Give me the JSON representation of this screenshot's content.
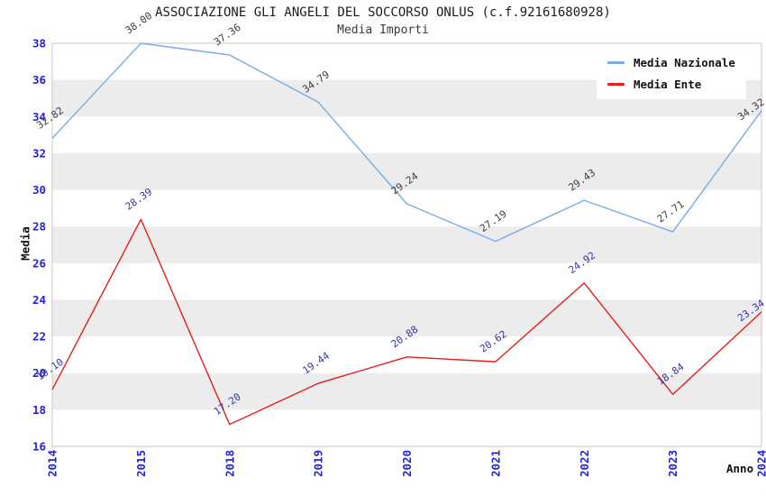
{
  "header": {
    "title": "ASSOCIAZIONE GLI ANGELI DEL SOCCORSO ONLUS (c.f.92161680928)",
    "subtitle": "Media Importi"
  },
  "colors": {
    "band_gray": "#ececec",
    "plot_border": "#c8c8c8",
    "axis_tick_blue": "#2222dd",
    "nazionale_blue": "#79ade3",
    "ente_red": "#e61e1e",
    "nazionale_label": "#3c3c3c",
    "ente_label": "#3434a8"
  },
  "chart_data": {
    "type": "line",
    "title": "ASSOCIAZIONE GLI ANGELI DEL SOCCORSO ONLUS (c.f.92161680928)",
    "subtitle": "Media Importi",
    "xlabel": "Anno",
    "ylabel": "Media",
    "categories": [
      "2014",
      "2015",
      "2018",
      "2019",
      "2020",
      "2021",
      "2022",
      "2023",
      "2024"
    ],
    "yticks": [
      16,
      18,
      20,
      22,
      24,
      26,
      28,
      30,
      32,
      34,
      36,
      38
    ],
    "ylim": [
      16,
      38
    ],
    "grid": "alternating-horizontal-bands",
    "legend_position": "top-right",
    "series": [
      {
        "name": "Media Nazionale",
        "color": "#79ade3",
        "label_color": "#3c3c3c",
        "values": [
          32.82,
          38.0,
          37.36,
          34.79,
          29.24,
          27.19,
          29.43,
          27.71,
          34.32
        ],
        "labels": [
          "32.82",
          "38.00",
          "37.36",
          "34.79",
          "29.24",
          "27.19",
          "29.43",
          "27.71",
          "34.32"
        ]
      },
      {
        "name": "Media Ente",
        "color": "#e61e1e",
        "label_color": "#3434a8",
        "values": [
          19.1,
          28.39,
          17.2,
          19.44,
          20.88,
          20.62,
          24.92,
          18.84,
          23.34
        ],
        "labels": [
          "19.10",
          "28.39",
          "17.20",
          "19.44",
          "20.88",
          "20.62",
          "24.92",
          "18.84",
          "23.34"
        ]
      }
    ]
  }
}
